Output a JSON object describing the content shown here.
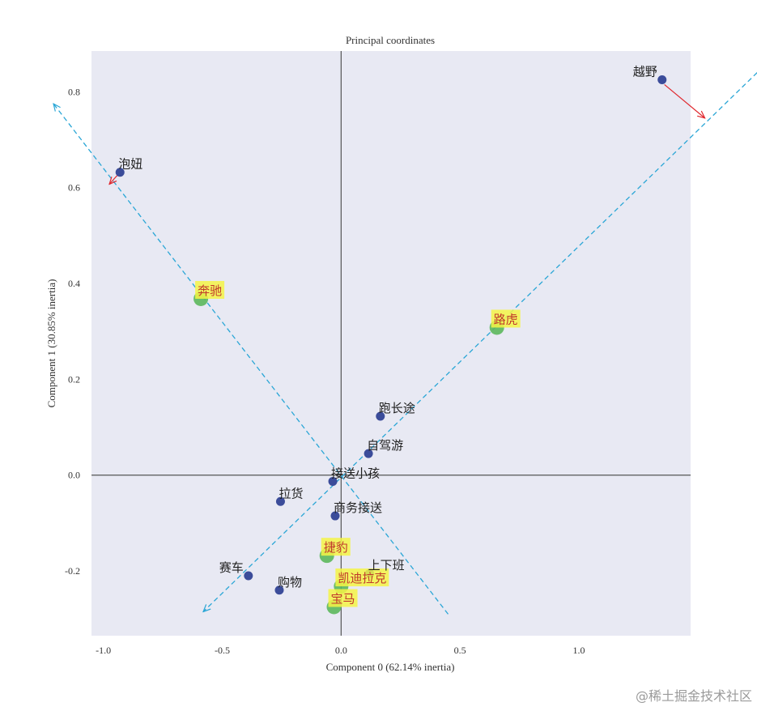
{
  "chart_data": {
    "type": "scatter",
    "title": "Principal coordinates",
    "xlabel": "Component 0 (62.14% inertia)",
    "ylabel": "Component 1 (30.85% inertia)",
    "xlim": [
      -1.05,
      1.47
    ],
    "ylim": [
      -0.335,
      0.885
    ],
    "xticks": [
      -1.0,
      -0.5,
      0.0,
      0.5,
      1.0
    ],
    "xtick_labels": [
      "-1.0",
      "-0.5",
      "0.0",
      "0.5",
      "1.0"
    ],
    "yticks": [
      -0.2,
      0.0,
      0.2,
      0.4,
      0.6,
      0.8
    ],
    "ytick_labels": [
      "-0.2",
      "0.0",
      "0.2",
      "0.4",
      "0.6",
      "0.8"
    ],
    "grid": false,
    "background": "#e8e9f3",
    "reference_lines": [
      0,
      0
    ],
    "row_points": [
      {
        "label": "越野",
        "x": 1.35,
        "y": 0.825
      },
      {
        "label": "泡妞",
        "x": -0.93,
        "y": 0.632
      },
      {
        "label": "跑长途",
        "x": 0.165,
        "y": 0.123
      },
      {
        "label": "自驾游",
        "x": 0.115,
        "y": 0.045
      },
      {
        "label": "接送小孩",
        "x": -0.035,
        "y": -0.013
      },
      {
        "label": "拉货",
        "x": -0.255,
        "y": -0.055
      },
      {
        "label": "商务接送",
        "x": -0.025,
        "y": -0.085
      },
      {
        "label": "上下班",
        "x": 0.12,
        "y": -0.205
      },
      {
        "label": "赛车",
        "x": -0.39,
        "y": -0.21
      },
      {
        "label": "购物",
        "x": -0.26,
        "y": -0.24
      }
    ],
    "column_points": [
      {
        "label": "奔驰",
        "x": -0.59,
        "y": 0.368
      },
      {
        "label": "路虎",
        "x": 0.655,
        "y": 0.308
      },
      {
        "label": "捷豹",
        "x": -0.06,
        "y": -0.168
      },
      {
        "label": "凯迪拉克",
        "x": 0.0,
        "y": -0.232
      },
      {
        "label": "宝马",
        "x": -0.03,
        "y": -0.275
      }
    ],
    "dashed_lines": [
      {
        "x1": -1.21,
        "y1": 0.775,
        "x2": 0.45,
        "y2": -0.29
      },
      {
        "x1": -0.58,
        "y1": -0.285,
        "x2": 1.75,
        "y2": 0.84
      }
    ],
    "arrows": [
      {
        "x1": 1.36,
        "y1": 0.815,
        "x2": 1.53,
        "y2": 0.745
      },
      {
        "x1": -0.93,
        "y1": 0.632,
        "x2": -0.975,
        "y2": 0.607
      }
    ],
    "colors": {
      "row_point": "#3b4c9a",
      "column_point": "#5cb85c",
      "dashed_line": "#2aa6d6",
      "arrow": "#e0282e",
      "highlight": "#f5f545",
      "zero_line": "#555555"
    }
  },
  "watermark": "@稀土掘金技术社区"
}
